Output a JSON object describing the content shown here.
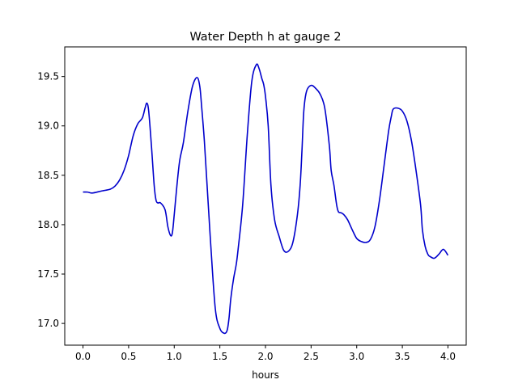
{
  "chart_data": {
    "type": "line",
    "title": "Water Depth h at gauge 2",
    "xlabel": "hours",
    "ylabel": "",
    "xlim": [
      -0.2,
      4.2
    ],
    "ylim": [
      16.78,
      19.8
    ],
    "xticks": [
      0.0,
      0.5,
      1.0,
      1.5,
      2.0,
      2.5,
      3.0,
      3.5,
      4.0
    ],
    "xtick_labels": [
      "0.0",
      "0.5",
      "1.0",
      "1.5",
      "2.0",
      "2.5",
      "3.0",
      "3.5",
      "4.0"
    ],
    "yticks": [
      17.0,
      17.5,
      18.0,
      18.5,
      19.0,
      19.5
    ],
    "ytick_labels": [
      "17.0",
      "17.5",
      "18.0",
      "18.5",
      "19.0",
      "19.5"
    ],
    "grid": false,
    "series": [
      {
        "name": "",
        "color": "#0000cc",
        "x": [
          0.0,
          0.05,
          0.1,
          0.2,
          0.3,
          0.35,
          0.4,
          0.45,
          0.5,
          0.55,
          0.6,
          0.65,
          0.68,
          0.7,
          0.72,
          0.75,
          0.78,
          0.8,
          0.82,
          0.85,
          0.9,
          0.93,
          0.96,
          0.98,
          1.0,
          1.03,
          1.06,
          1.1,
          1.15,
          1.2,
          1.25,
          1.28,
          1.3,
          1.33,
          1.36,
          1.4,
          1.45,
          1.5,
          1.55,
          1.58,
          1.6,
          1.62,
          1.65,
          1.68,
          1.7,
          1.75,
          1.8,
          1.85,
          1.9,
          1.93,
          1.96,
          1.98,
          2.0,
          2.03,
          2.06,
          2.1,
          2.15,
          2.2,
          2.25,
          2.3,
          2.35,
          2.38,
          2.4,
          2.42,
          2.45,
          2.5,
          2.55,
          2.6,
          2.65,
          2.7,
          2.72,
          2.75,
          2.78,
          2.8,
          2.83,
          2.86,
          2.9,
          2.95,
          3.0,
          3.05,
          3.1,
          3.15,
          3.2,
          3.25,
          3.3,
          3.35,
          3.38,
          3.4,
          3.45,
          3.5,
          3.55,
          3.6,
          3.65,
          3.7,
          3.72,
          3.75,
          3.78,
          3.8,
          3.85,
          3.9,
          3.95,
          4.0
        ],
        "y": [
          18.33,
          18.33,
          18.32,
          18.34,
          18.36,
          18.39,
          18.45,
          18.55,
          18.7,
          18.9,
          19.02,
          19.08,
          19.18,
          19.23,
          19.15,
          18.8,
          18.4,
          18.25,
          18.22,
          18.22,
          18.15,
          17.98,
          17.89,
          17.92,
          18.1,
          18.4,
          18.65,
          18.83,
          19.15,
          19.4,
          19.49,
          19.4,
          19.2,
          18.85,
          18.4,
          17.8,
          17.15,
          16.95,
          16.9,
          16.93,
          17.05,
          17.25,
          17.45,
          17.6,
          17.75,
          18.2,
          18.9,
          19.45,
          19.62,
          19.58,
          19.48,
          19.42,
          19.3,
          19.0,
          18.4,
          18.05,
          17.88,
          17.74,
          17.73,
          17.82,
          18.1,
          18.4,
          18.75,
          19.15,
          19.35,
          19.41,
          19.38,
          19.32,
          19.18,
          18.8,
          18.55,
          18.4,
          18.2,
          18.13,
          18.12,
          18.1,
          18.05,
          17.95,
          17.86,
          17.83,
          17.82,
          17.85,
          17.98,
          18.25,
          18.6,
          18.95,
          19.1,
          19.17,
          19.18,
          19.15,
          19.05,
          18.85,
          18.55,
          18.2,
          17.95,
          17.78,
          17.7,
          17.68,
          17.66,
          17.7,
          17.75,
          17.69
        ]
      }
    ]
  }
}
